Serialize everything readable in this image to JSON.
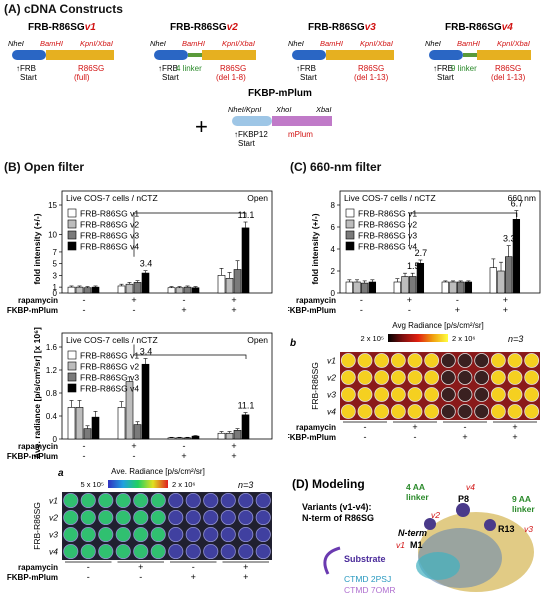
{
  "panel_a": {
    "title": "(A) cDNA Constructs",
    "constructs": [
      {
        "name_prefix": "FRB-R86SG",
        "name_suffix": "v1",
        "site1": "NheI",
        "site2": "BamHI",
        "site3": "KpnI/XbaI",
        "domain1": "FRB",
        "domain1b": "Start",
        "domain2": "R86SG",
        "domain2b": "(full)",
        "linker": ""
      },
      {
        "name_prefix": "FRB-R86SG",
        "name_suffix": "v2",
        "site1": "NheI",
        "site2": "BamHI",
        "site3": "KpnI/XbaI",
        "domain1": "FRB",
        "domain1b": "Start",
        "domain2": "R86SG",
        "domain2b": "(del 1-8)",
        "linker": "4 linker"
      },
      {
        "name_prefix": "FRB-R86SG",
        "name_suffix": "v3",
        "site1": "NheI",
        "site2": "BamHI",
        "site3": "KpnI/XbaI",
        "domain1": "FRB",
        "domain1b": "Start",
        "domain2": "R86SG",
        "domain2b": "(del 1-13)",
        "linker": ""
      },
      {
        "name_prefix": "FRB-R86SG",
        "name_suffix": "v4",
        "site1": "NheI",
        "site2": "BamHI",
        "site3": "KpnI/XbaI",
        "domain1": "FRB",
        "domain1b": "Start",
        "domain2": "R86SG",
        "domain2b": "(del 1-13)",
        "linker": "9 linker"
      }
    ],
    "plus": "+",
    "fkbp": {
      "name": "FKBP-mPlum",
      "site1": "NheI/KpnI",
      "site2": "XhoI",
      "site3": "XbaI",
      "domain1": "FKBP12",
      "domain1b": "Start",
      "domain2": "mPlum"
    }
  },
  "panel_b": {
    "title": "(B) Open filter",
    "subtitle": "Live COS-7 cells / nCTZ",
    "filter": "Open",
    "row_labels": [
      "rapamycin",
      "FKBP-mPlum"
    ],
    "rapamycin": [
      "-",
      "+",
      "-",
      "+"
    ],
    "fkbp": [
      "-",
      "-",
      "+",
      "+"
    ],
    "bracket_label": "11.1",
    "legend": [
      "FRB-R86SG v1",
      "FRB-R86SG v2",
      "FRB-R86SG v3",
      "FRB-R86SG v4"
    ],
    "image_label": "a",
    "radiance_title": "Ave. Radiance [p/s/cm²/sr]",
    "radiance_min": "5 x 10⁵",
    "radiance_max": "2 x 10⁶",
    "n_label": "n=3",
    "plate_ylabel": "FRB-R86SG",
    "plate_rows": [
      "v1",
      "v2",
      "v3",
      "v4"
    ]
  },
  "panel_c": {
    "title": "(C) 660-nm filter",
    "subtitle": "Live COS-7 cells / nCTZ",
    "filter": "660 nm",
    "row_labels": [
      "rapamycin",
      "FKBP-mPlum"
    ],
    "rapamycin": [
      "-",
      "+",
      "-",
      "+"
    ],
    "fkbp": [
      "-",
      "-",
      "+",
      "+"
    ],
    "bracket_label": "6.7",
    "legend": [
      "FRB-R86SG v1",
      "FRB-R86SG v2",
      "FRB-R86SG v3",
      "FRB-R86SG v4"
    ],
    "image_label": "b",
    "radiance_title": "Avg Radiance [p/s/cm²/sr]",
    "radiance_min": "2 x 10⁵",
    "radiance_max": "2 x 10⁶",
    "n_label": "n=3",
    "plate_ylabel": "FRB-R86SG",
    "plate_rows": [
      "v1",
      "v2",
      "v3",
      "v4"
    ]
  },
  "panel_d": {
    "title": "(D) Modeling",
    "variants_line1": "Variants (v1-v4):",
    "variants_line2": "N-term of R86SG",
    "nterm": "N-term",
    "m1": "M1",
    "p8": "P8",
    "r13": "R13",
    "v1": "v1",
    "v2": "v2",
    "v3": "v3",
    "v4": "v4",
    "linker4": "4 AA",
    "linker4b": "linker",
    "linker9": "9 AA",
    "linker9b": "linker",
    "substrate": "Substrate",
    "ctmd1": "CTMD 2PSJ",
    "ctmd2": "CTMD 7OMR"
  },
  "colors": {
    "v1": "#ffffff",
    "v2": "#bdbdbd",
    "v3": "#7a7a7a",
    "v4": "#000000",
    "red": "#d11111",
    "green": "#2a8a2a",
    "magenta": "#c0207a"
  },
  "chart_data": [
    {
      "type": "bar",
      "title": "Live COS-7 cells / nCTZ",
      "ylabel": "fold intensity (+/-)",
      "ylim": [
        0,
        15
      ],
      "yticks": [
        0,
        1,
        3,
        5,
        7,
        10,
        15
      ],
      "groups": [
        "- / -",
        "+ / -",
        "- / +",
        "+ / +"
      ],
      "series": [
        {
          "name": "FRB-R86SG v1",
          "values": [
            1.0,
            1.2,
            0.9,
            3.0
          ],
          "err": [
            0.2,
            0.3,
            0.2,
            1.2
          ]
        },
        {
          "name": "FRB-R86SG v2",
          "values": [
            1.0,
            1.5,
            0.9,
            2.5
          ],
          "err": [
            0.2,
            0.3,
            0.2,
            1.0
          ]
        },
        {
          "name": "FRB-R86SG v3",
          "values": [
            0.9,
            1.8,
            1.0,
            4.0
          ],
          "err": [
            0.2,
            0.3,
            0.2,
            1.5
          ]
        },
        {
          "name": "FRB-R86SG v4",
          "values": [
            1.0,
            3.4,
            0.9,
            11.1
          ],
          "err": [
            0.2,
            0.4,
            0.2,
            1.0
          ]
        }
      ],
      "data_labels": [
        {
          "group": 1,
          "series": 3,
          "text": "3.4"
        },
        {
          "group": 3,
          "series": 3,
          "text": "11.1"
        }
      ]
    },
    {
      "type": "bar",
      "title": "Live COS-7 cells / nCTZ",
      "ylabel": "Ave. radiance [p/s/cm²/sr] [x 10⁶]",
      "ylim": [
        0,
        1.6
      ],
      "yticks": [
        0.0,
        0.4,
        0.8,
        1.2,
        1.6
      ],
      "groups": [
        "- / -",
        "+ / -",
        "- / +",
        "+ / +"
      ],
      "series": [
        {
          "name": "FRB-R86SG v1",
          "values": [
            0.55,
            0.55,
            0.02,
            0.1
          ],
          "err": [
            0.12,
            0.1,
            0.01,
            0.03
          ]
        },
        {
          "name": "FRB-R86SG v2",
          "values": [
            0.55,
            1.0,
            0.02,
            0.1
          ],
          "err": [
            0.12,
            0.08,
            0.01,
            0.03
          ]
        },
        {
          "name": "FRB-R86SG v3",
          "values": [
            0.18,
            0.25,
            0.02,
            0.15
          ],
          "err": [
            0.05,
            0.05,
            0.01,
            0.03
          ]
        },
        {
          "name": "FRB-R86SG v4",
          "values": [
            0.38,
            1.3,
            0.05,
            0.42
          ],
          "err": [
            0.1,
            0.1,
            0.01,
            0.04
          ]
        }
      ],
      "data_labels": [
        {
          "group": 1,
          "series": 3,
          "text": "3.4"
        },
        {
          "group": 3,
          "series": 3,
          "text": "11.1"
        }
      ]
    },
    {
      "type": "bar",
      "title": "Live COS-7 cells / nCTZ",
      "ylabel": "fold intensity (+/-)",
      "ylim": [
        0,
        8
      ],
      "yticks": [
        0,
        2,
        4,
        6,
        8
      ],
      "groups": [
        "- / -",
        "+ / -",
        "- / +",
        "+ / +"
      ],
      "series": [
        {
          "name": "FRB-R86SG v1",
          "values": [
            1.0,
            1.0,
            1.0,
            2.3
          ],
          "err": [
            0.2,
            0.3,
            0.1,
            0.8
          ]
        },
        {
          "name": "FRB-R86SG v2",
          "values": [
            1.0,
            1.5,
            1.0,
            2.0
          ],
          "err": [
            0.2,
            0.3,
            0.1,
            0.8
          ]
        },
        {
          "name": "FRB-R86SG v3",
          "values": [
            0.9,
            1.5,
            1.0,
            3.3
          ],
          "err": [
            0.2,
            0.3,
            0.1,
            1.0
          ]
        },
        {
          "name": "FRB-R86SG v4",
          "values": [
            1.0,
            2.7,
            1.0,
            6.7
          ],
          "err": [
            0.2,
            0.3,
            0.1,
            0.8
          ]
        }
      ],
      "data_labels": [
        {
          "group": 1,
          "series": 2,
          "text": "1.5"
        },
        {
          "group": 1,
          "series": 3,
          "text": "2.7"
        },
        {
          "group": 3,
          "series": 2,
          "text": "3.3"
        },
        {
          "group": 3,
          "series": 3,
          "text": "6.7"
        }
      ]
    }
  ]
}
